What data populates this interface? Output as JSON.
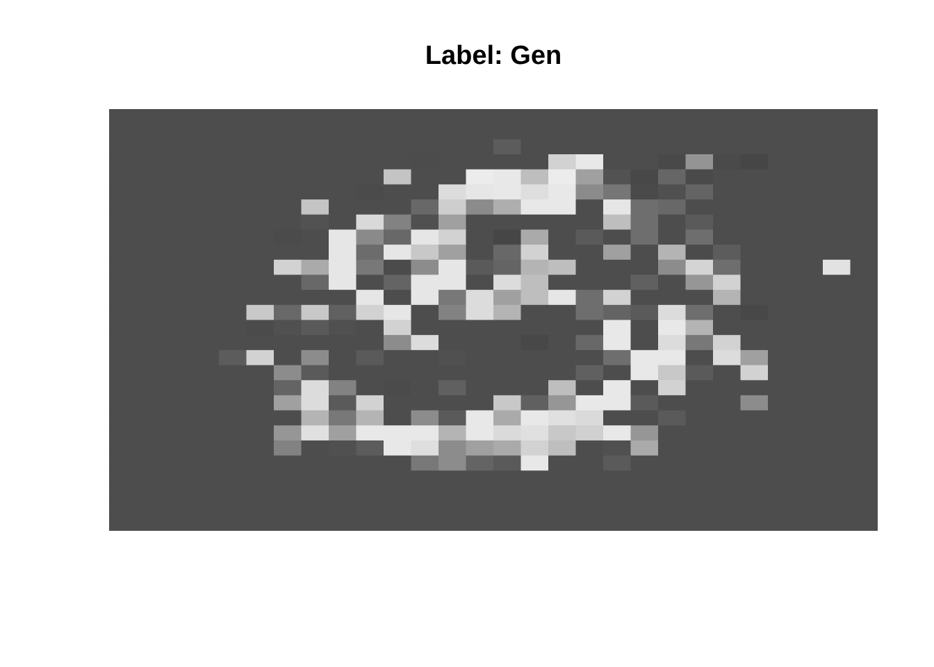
{
  "title": "Label: Gen",
  "image": {
    "rows": 28,
    "cols": 28,
    "colormap": "gray",
    "background_color": "#4d4d4d",
    "pixels": [
      [
        77,
        77,
        77,
        77,
        77,
        77,
        77,
        77,
        77,
        77,
        77,
        77,
        77,
        77,
        77,
        77,
        77,
        77,
        77,
        77,
        77,
        77,
        77,
        77,
        77,
        77,
        77,
        77
      ],
      [
        77,
        77,
        77,
        77,
        77,
        77,
        77,
        77,
        77,
        77,
        77,
        77,
        77,
        77,
        77,
        77,
        77,
        77,
        77,
        77,
        77,
        77,
        77,
        77,
        77,
        77,
        77,
        77
      ],
      [
        77,
        77,
        77,
        77,
        77,
        77,
        77,
        77,
        77,
        77,
        77,
        77,
        77,
        77,
        92,
        77,
        77,
        77,
        77,
        77,
        77,
        77,
        77,
        77,
        77,
        77,
        77,
        77
      ],
      [
        77,
        77,
        77,
        77,
        77,
        77,
        77,
        77,
        77,
        77,
        77,
        76,
        77,
        77,
        77,
        77,
        210,
        232,
        77,
        77,
        73,
        148,
        74,
        70,
        77,
        77,
        77,
        77
      ],
      [
        77,
        77,
        77,
        77,
        77,
        77,
        77,
        77,
        77,
        77,
        196,
        77,
        77,
        236,
        232,
        190,
        236,
        160,
        82,
        72,
        102,
        74,
        77,
        77,
        77,
        77,
        77,
        77
      ],
      [
        77,
        77,
        77,
        77,
        77,
        77,
        77,
        77,
        77,
        75,
        77,
        77,
        220,
        230,
        232,
        222,
        232,
        139,
        118,
        74,
        80,
        100,
        77,
        77,
        77,
        77,
        77,
        77
      ],
      [
        77,
        77,
        77,
        77,
        77,
        77,
        77,
        196,
        77,
        77,
        77,
        104,
        206,
        139,
        174,
        232,
        232,
        77,
        230,
        110,
        104,
        77,
        77,
        77,
        77,
        77,
        77,
        77
      ],
      [
        77,
        77,
        77,
        77,
        77,
        77,
        77,
        82,
        77,
        217,
        130,
        80,
        160,
        77,
        77,
        77,
        77,
        77,
        190,
        110,
        77,
        90,
        77,
        77,
        77,
        77,
        77,
        77
      ],
      [
        77,
        77,
        77,
        77,
        77,
        77,
        75,
        77,
        230,
        138,
        104,
        230,
        210,
        77,
        70,
        170,
        77,
        90,
        77,
        110,
        77,
        110,
        77,
        77,
        77,
        77,
        77,
        77
      ],
      [
        77,
        77,
        77,
        77,
        77,
        77,
        77,
        77,
        230,
        108,
        230,
        200,
        160,
        77,
        104,
        210,
        77,
        77,
        160,
        77,
        180,
        75,
        92,
        77,
        77,
        77,
        77,
        77
      ],
      [
        77,
        77,
        77,
        77,
        77,
        77,
        210,
        170,
        230,
        120,
        75,
        140,
        230,
        90,
        100,
        180,
        190,
        77,
        77,
        77,
        140,
        212,
        110,
        77,
        77,
        77,
        226,
        77
      ],
      [
        77,
        77,
        77,
        77,
        77,
        77,
        77,
        104,
        230,
        77,
        100,
        230,
        230,
        77,
        220,
        190,
        77,
        77,
        77,
        96,
        77,
        150,
        210,
        77,
        77,
        77,
        77,
        77
      ],
      [
        77,
        77,
        77,
        77,
        77,
        77,
        77,
        77,
        77,
        230,
        77,
        230,
        120,
        220,
        160,
        190,
        230,
        110,
        210,
        77,
        77,
        77,
        180,
        77,
        77,
        77,
        77,
        77
      ],
      [
        77,
        77,
        77,
        77,
        77,
        200,
        104,
        200,
        96,
        210,
        230,
        77,
        130,
        220,
        180,
        77,
        77,
        110,
        100,
        90,
        220,
        110,
        77,
        72,
        77,
        77,
        77,
        77
      ],
      [
        77,
        77,
        77,
        77,
        77,
        75,
        80,
        90,
        80,
        77,
        210,
        77,
        77,
        77,
        77,
        77,
        77,
        77,
        232,
        77,
        232,
        180,
        77,
        77,
        77,
        77,
        77,
        77
      ],
      [
        77,
        77,
        77,
        77,
        77,
        77,
        77,
        77,
        77,
        77,
        140,
        220,
        77,
        77,
        77,
        72,
        77,
        104,
        232,
        77,
        220,
        120,
        210,
        77,
        77,
        77,
        77,
        77
      ],
      [
        77,
        77,
        77,
        77,
        92,
        210,
        77,
        140,
        77,
        90,
        77,
        77,
        80,
        77,
        77,
        77,
        77,
        77,
        110,
        232,
        232,
        77,
        220,
        160,
        77,
        77,
        77,
        77
      ],
      [
        77,
        77,
        77,
        77,
        77,
        77,
        140,
        90,
        77,
        77,
        77,
        77,
        77,
        77,
        77,
        77,
        77,
        96,
        77,
        232,
        200,
        90,
        77,
        210,
        77,
        77,
        77,
        77
      ],
      [
        77,
        77,
        77,
        77,
        77,
        77,
        100,
        220,
        130,
        77,
        75,
        77,
        96,
        77,
        77,
        77,
        190,
        77,
        232,
        77,
        210,
        77,
        77,
        77,
        77,
        77,
        77,
        77
      ],
      [
        77,
        77,
        77,
        77,
        77,
        77,
        160,
        220,
        90,
        210,
        77,
        77,
        77,
        77,
        200,
        96,
        150,
        232,
        232,
        90,
        77,
        77,
        77,
        140,
        77,
        77,
        77,
        77
      ],
      [
        77,
        77,
        77,
        77,
        77,
        77,
        77,
        180,
        120,
        180,
        77,
        140,
        90,
        232,
        170,
        232,
        224,
        218,
        77,
        77,
        90,
        77,
        77,
        77,
        77,
        77,
        77,
        77
      ],
      [
        77,
        77,
        77,
        77,
        77,
        77,
        150,
        224,
        160,
        232,
        232,
        232,
        180,
        232,
        218,
        224,
        200,
        208,
        232,
        150,
        77,
        77,
        77,
        77,
        77,
        77,
        77,
        77
      ],
      [
        77,
        77,
        77,
        77,
        77,
        77,
        130,
        77,
        80,
        92,
        232,
        222,
        140,
        160,
        170,
        210,
        190,
        77,
        80,
        170,
        77,
        77,
        77,
        77,
        77,
        77,
        77,
        77
      ],
      [
        77,
        77,
        77,
        77,
        77,
        77,
        77,
        77,
        77,
        77,
        77,
        120,
        140,
        100,
        90,
        232,
        77,
        77,
        90,
        77,
        77,
        77,
        77,
        77,
        77,
        77,
        77,
        77
      ],
      [
        77,
        77,
        77,
        77,
        77,
        77,
        77,
        77,
        77,
        77,
        77,
        77,
        77,
        77,
        77,
        77,
        77,
        77,
        77,
        77,
        77,
        77,
        77,
        77,
        77,
        77,
        77,
        77
      ],
      [
        77,
        77,
        77,
        77,
        77,
        77,
        77,
        77,
        77,
        77,
        77,
        77,
        77,
        77,
        77,
        77,
        77,
        77,
        77,
        77,
        77,
        77,
        77,
        77,
        77,
        77,
        77,
        77
      ],
      [
        77,
        77,
        77,
        77,
        77,
        77,
        77,
        77,
        77,
        77,
        77,
        77,
        77,
        77,
        77,
        77,
        77,
        77,
        77,
        77,
        77,
        77,
        77,
        77,
        77,
        77,
        77,
        77
      ],
      [
        77,
        77,
        77,
        77,
        77,
        77,
        77,
        77,
        77,
        77,
        77,
        77,
        77,
        77,
        77,
        77,
        77,
        77,
        77,
        77,
        77,
        77,
        77,
        77,
        77,
        77,
        77,
        77
      ]
    ]
  }
}
